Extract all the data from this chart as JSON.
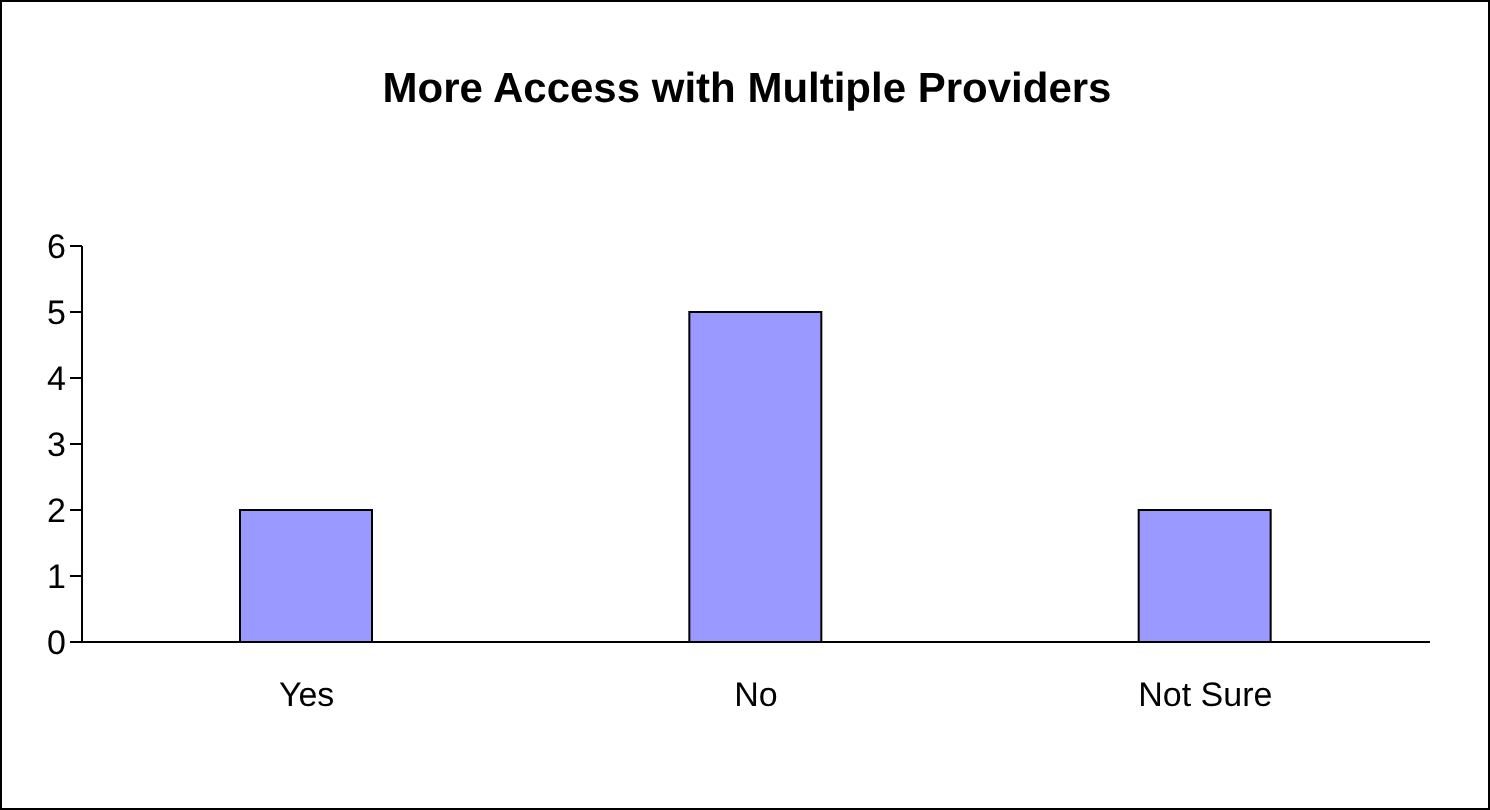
{
  "chart_data": {
    "type": "bar",
    "title": "More Access with Multiple Providers",
    "categories": [
      "Yes",
      "No",
      "Not Sure"
    ],
    "values": [
      2,
      5,
      2
    ],
    "color": "#9999ff",
    "ylim": [
      0,
      6
    ],
    "yticks": [
      0,
      1,
      2,
      3,
      4,
      5,
      6
    ],
    "grid": false,
    "legend": false
  }
}
